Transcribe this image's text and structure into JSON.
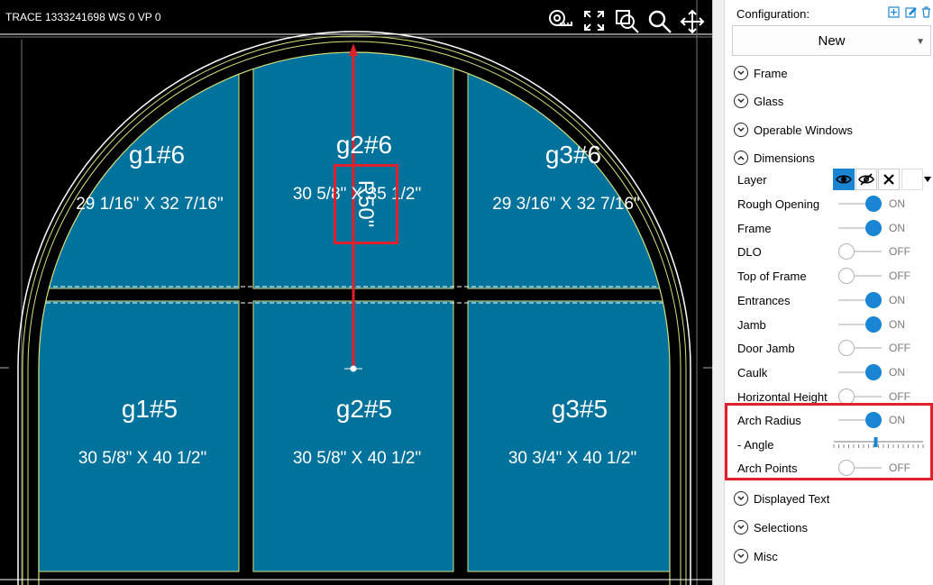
{
  "canvas": {
    "status": "TRACE 1333241698  WS 0  VP 0",
    "radius_label": "R50\"",
    "toolbar": [
      "measure-tape-icon",
      "fit-view-icon",
      "zoom-window-icon",
      "zoom-icon",
      "pan-icon"
    ],
    "panes": [
      {
        "name": "g1#6",
        "size": "29 1/16\" X 32 7/16\""
      },
      {
        "name": "g2#6",
        "size": "30 5/8\" X 35 1/2\""
      },
      {
        "name": "g3#6",
        "size": "29 3/16\" X 32 7/16\""
      },
      {
        "name": "g1#5",
        "size": "30 5/8\" X 40 1/2\""
      },
      {
        "name": "g2#5",
        "size": "30 5/8\" X 40 1/2\""
      },
      {
        "name": "g3#5",
        "size": "30 3/4\" X 40 1/2\""
      }
    ],
    "colors": {
      "glass": "#00729c",
      "frame": "#000000",
      "outline": "#d9e27a",
      "radius_line": "#e0202a"
    }
  },
  "panel": {
    "configuration_label": "Configuration:",
    "config_value": "New",
    "sections_top": [
      "Frame",
      "Glass",
      "Operable Windows",
      "Dimensions"
    ],
    "layer_label": "Layer",
    "toggles": [
      {
        "label": "Rough Opening",
        "state": "ON"
      },
      {
        "label": "Frame",
        "state": "ON"
      },
      {
        "label": "DLO",
        "state": "OFF"
      },
      {
        "label": "Top of Frame",
        "state": "OFF"
      },
      {
        "label": "Entrances",
        "state": "ON"
      },
      {
        "label": "Jamb",
        "state": "ON"
      },
      {
        "label": "Door Jamb",
        "state": "OFF"
      },
      {
        "label": "Caulk",
        "state": "ON"
      },
      {
        "label": "Horizontal Height",
        "state": "OFF"
      },
      {
        "label": "Arch Radius",
        "state": "ON"
      }
    ],
    "angle": {
      "label": " - Angle",
      "value_fraction": 0.47
    },
    "arch_points": {
      "label": "Arch Points",
      "state": "OFF"
    },
    "sections_bottom": [
      "Displayed Text",
      "Selections",
      "Misc"
    ],
    "accent_color": "#1a85d3",
    "highlight_color": "#e0202a"
  }
}
